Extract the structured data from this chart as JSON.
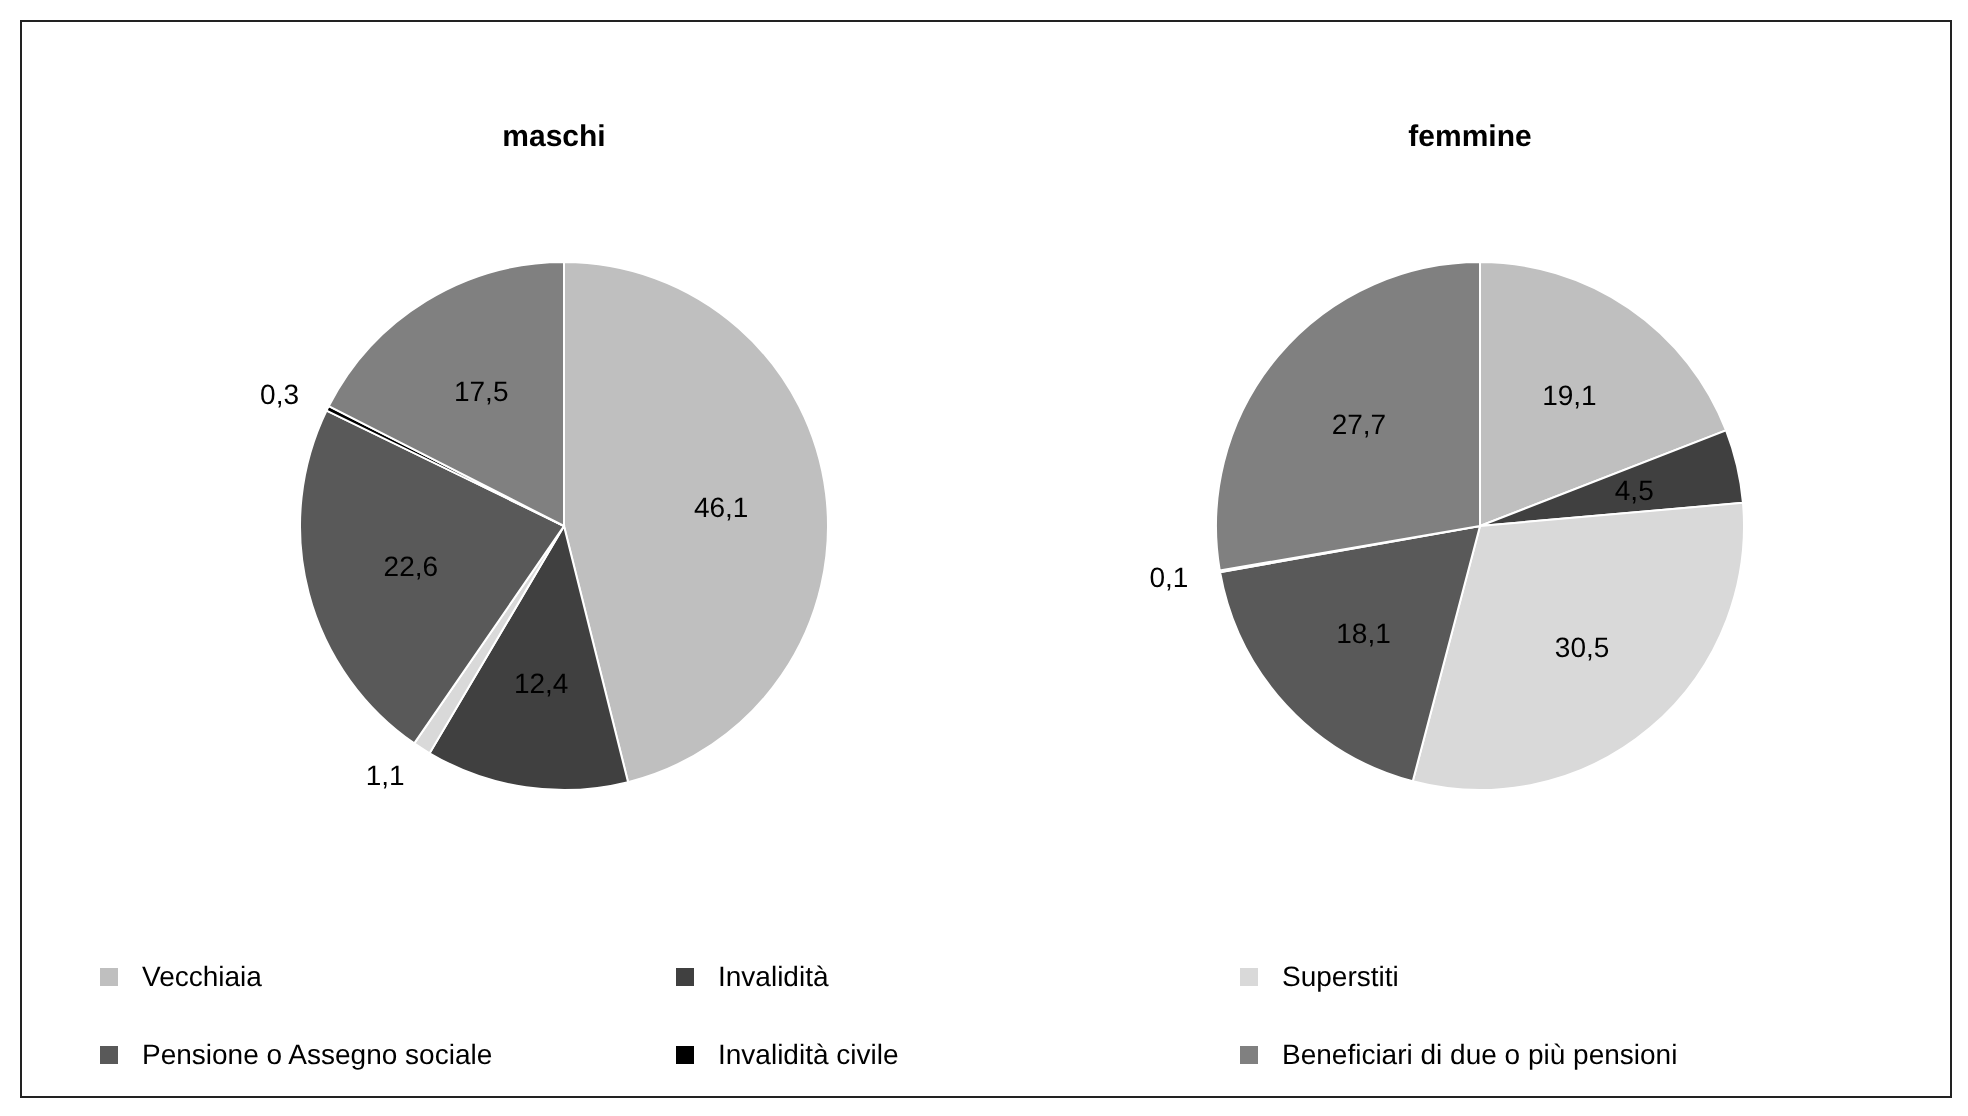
{
  "chart_data": {
    "type": "pie",
    "categories": [
      "Vecchiaia",
      "Invalidità",
      "Superstiti",
      "Pensione o Assegno sociale",
      "Invalidità civile",
      "Beneficiari di due o più pensioni"
    ],
    "colors": [
      "#bfbfbf",
      "#404040",
      "#d9d9d9",
      "#595959",
      "#000000",
      "#808080"
    ],
    "legend": "bottom",
    "series": [
      {
        "name": "maschi",
        "values": [
          46.1,
          12.4,
          1.1,
          22.6,
          0.3,
          17.5
        ],
        "value_labels": [
          "46,1",
          "12,4",
          "1,1",
          "22,6",
          "0,3",
          "17,5"
        ]
      },
      {
        "name": "femmine",
        "values": [
          19.1,
          4.5,
          30.5,
          18.1,
          0.1,
          27.7
        ],
        "value_labels": [
          "19,1",
          "4,5",
          "30,5",
          "18,1",
          "0,1",
          "27,7"
        ]
      }
    ]
  }
}
